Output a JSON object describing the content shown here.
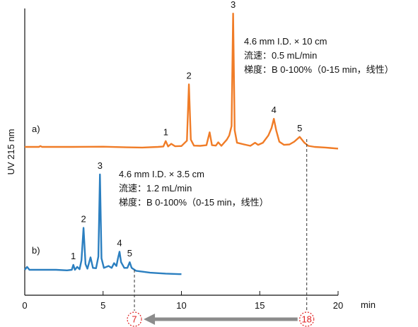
{
  "chart_data": {
    "type": "line",
    "xlabel": "min",
    "ylabel": "UV 215 nm",
    "xlim": [
      0,
      20
    ],
    "x_ticks": [
      "0",
      "5",
      "10",
      "15",
      "20"
    ],
    "grid": false,
    "series": [
      {
        "name": "a)",
        "color": "#f07c27",
        "annotation": [
          "4.6 mm I.D. × 10 cm",
          "流速：0.5 mL/min",
          "梯度：B 0-100%（0-15 min，线性）"
        ],
        "baseline_level": 0,
        "points": [
          [
            0,
            0
          ],
          [
            0.9,
            0
          ],
          [
            1.0,
            0.4
          ],
          [
            1.1,
            0
          ],
          [
            3.0,
            0
          ],
          [
            5.0,
            0.1
          ],
          [
            6.5,
            -0.2
          ],
          [
            7.5,
            -0.3
          ],
          [
            8.5,
            0
          ],
          [
            8.85,
            0.2
          ],
          [
            9.0,
            2.8
          ],
          [
            9.15,
            0.2
          ],
          [
            9.35,
            1.5
          ],
          [
            9.6,
            0.3
          ],
          [
            10.0,
            0.4
          ],
          [
            10.35,
            3.0
          ],
          [
            10.48,
            30
          ],
          [
            10.6,
            3.5
          ],
          [
            10.8,
            0.6
          ],
          [
            11.2,
            0.5
          ],
          [
            11.6,
            0.8
          ],
          [
            11.8,
            7.0
          ],
          [
            11.95,
            0.8
          ],
          [
            12.2,
            0.6
          ],
          [
            12.35,
            2.2
          ],
          [
            12.55,
            0.5
          ],
          [
            12.9,
            3.5
          ],
          [
            13.05,
            5.5
          ],
          [
            13.2,
            10
          ],
          [
            13.3,
            64
          ],
          [
            13.4,
            8
          ],
          [
            13.55,
            2.0
          ],
          [
            14.0,
            1.2
          ],
          [
            14.4,
            0.5
          ],
          [
            14.7,
            2.0
          ],
          [
            14.9,
            1.0
          ],
          [
            15.2,
            2.0
          ],
          [
            15.55,
            5.5
          ],
          [
            15.75,
            9.0
          ],
          [
            15.9,
            13.5
          ],
          [
            16.05,
            8.0
          ],
          [
            16.25,
            2.5
          ],
          [
            16.55,
            1.0
          ],
          [
            16.9,
            1.2
          ],
          [
            17.2,
            2.5
          ],
          [
            17.55,
            4.8
          ],
          [
            17.85,
            2.0
          ],
          [
            18.1,
            0.5
          ],
          [
            18.5,
            0
          ],
          [
            19.2,
            -0.3
          ],
          [
            19.5,
            -0.5
          ],
          [
            20,
            -0.8
          ]
        ],
        "peaks": [
          {
            "label": "1",
            "x": 9.0,
            "y": 2.8
          },
          {
            "label": "2",
            "x": 10.48,
            "y": 30
          },
          {
            "label": "3",
            "x": 13.3,
            "y": 64
          },
          {
            "label": "4",
            "x": 15.9,
            "y": 13.5
          },
          {
            "label": "5",
            "x": 17.55,
            "y": 4.8
          }
        ]
      },
      {
        "name": "b)",
        "color": "#2b7fc0",
        "annotation": [
          "4.6 mm I.D. × 3.5 cm",
          "流速：1.2 mL/min",
          "梯度：B 0-100%（0-15 min，线性）"
        ],
        "baseline_level": -60,
        "points": [
          [
            0,
            0
          ],
          [
            0.15,
            1.5
          ],
          [
            0.3,
            0
          ],
          [
            2.0,
            0
          ],
          [
            2.7,
            -0.3
          ],
          [
            3.0,
            0
          ],
          [
            3.1,
            2.6
          ],
          [
            3.2,
            0
          ],
          [
            3.35,
            1.5
          ],
          [
            3.5,
            0.3
          ],
          [
            3.62,
            5
          ],
          [
            3.75,
            22
          ],
          [
            3.88,
            3
          ],
          [
            4.0,
            0.6
          ],
          [
            4.2,
            6.5
          ],
          [
            4.35,
            1.0
          ],
          [
            4.55,
            0.8
          ],
          [
            4.7,
            7
          ],
          [
            4.8,
            50
          ],
          [
            4.9,
            6
          ],
          [
            5.05,
            1.0
          ],
          [
            5.35,
            2.0
          ],
          [
            5.55,
            1.0
          ],
          [
            5.7,
            3.5
          ],
          [
            5.85,
            2.0
          ],
          [
            5.95,
            6
          ],
          [
            6.05,
            9.5
          ],
          [
            6.15,
            4
          ],
          [
            6.35,
            1.0
          ],
          [
            6.55,
            1.0
          ],
          [
            6.7,
            4
          ],
          [
            6.82,
            1.0
          ],
          [
            7.1,
            -0.5
          ],
          [
            8.0,
            -1.5
          ],
          [
            9.0,
            -2.0
          ],
          [
            10.0,
            -2.3
          ]
        ],
        "peaks": [
          {
            "label": "1",
            "x": 3.1,
            "y": 2.6
          },
          {
            "label": "2",
            "x": 3.75,
            "y": 22
          },
          {
            "label": "3",
            "x": 4.8,
            "y": 50
          },
          {
            "label": "4",
            "x": 6.05,
            "y": 9.5
          },
          {
            "label": "5",
            "x": 6.7,
            "y": 4
          }
        ]
      }
    ],
    "markers": [
      {
        "label": "7",
        "x": 7,
        "color": "#e02020"
      },
      {
        "label": "18",
        "x": 18,
        "color": "#e02020"
      }
    ],
    "arrow": {
      "from": 18,
      "to": 7,
      "color": "#8c8c8c"
    }
  }
}
